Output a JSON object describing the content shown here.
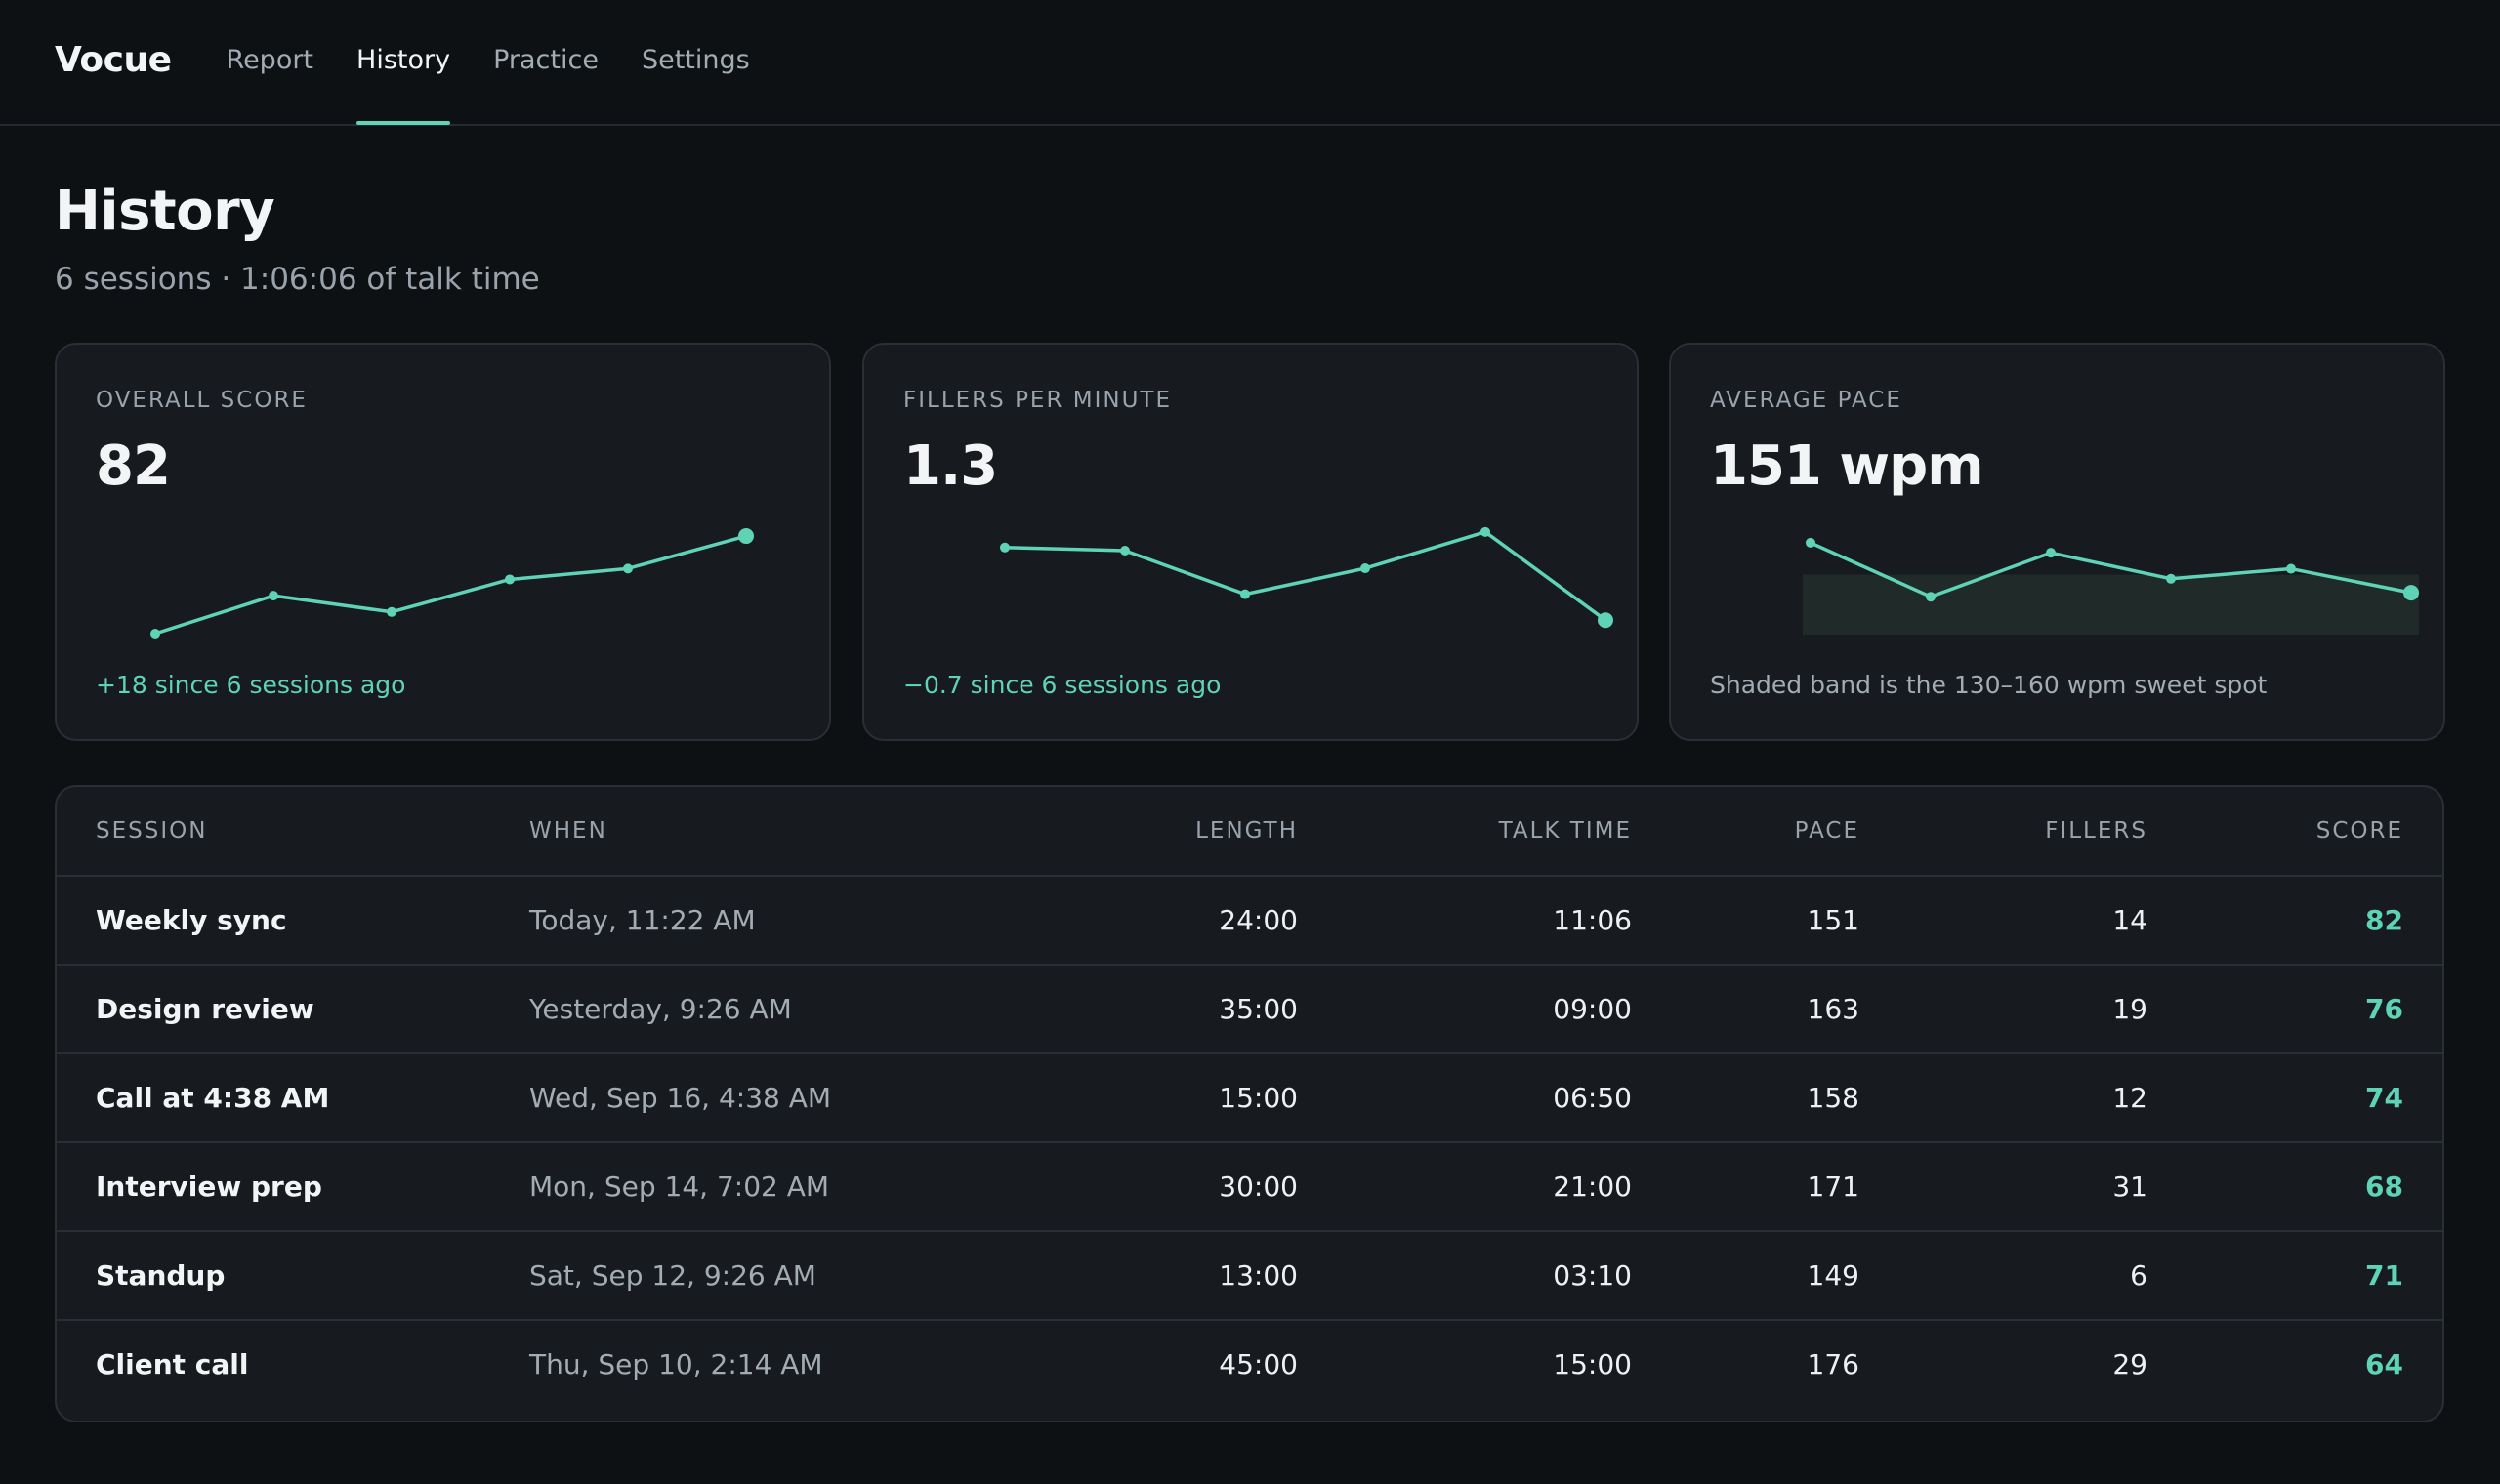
{
  "app": {
    "brand": "Vocue",
    "nav": [
      {
        "label": "Report",
        "active": false
      },
      {
        "label": "History",
        "active": true
      },
      {
        "label": "Practice",
        "active": false
      },
      {
        "label": "Settings",
        "active": false
      }
    ]
  },
  "header": {
    "title": "History",
    "subtitle": "6 sessions · 1:06:06 of talk time"
  },
  "colors": {
    "accent": "#5ed3b6",
    "background": "#0e1114",
    "card": "#171b1f"
  },
  "cards": [
    {
      "label": "Overall score",
      "value": "82",
      "foot": "+18 since 6 sessions ago",
      "trend": [
        64,
        71,
        68,
        74,
        76,
        82
      ]
    },
    {
      "label": "Fillers per minute",
      "value": "1.3",
      "foot": "−0.7 since 6 sessions ago",
      "trend": [
        2.0,
        1.97,
        1.55,
        1.8,
        2.15,
        1.3
      ]
    },
    {
      "label": "Average pace",
      "value": "151 wpm",
      "foot": "Shaded band is the 130–160 wpm sweet spot",
      "trend": [
        176,
        149,
        171,
        158,
        163,
        151
      ],
      "band": [
        130,
        160
      ]
    }
  ],
  "table": {
    "headers": {
      "session": "Session",
      "when": "When",
      "length": "Length",
      "talk_time": "Talk time",
      "pace": "Pace",
      "fillers": "Fillers",
      "score": "Score"
    },
    "rows": [
      {
        "session": "Weekly sync",
        "when": "Today, 11:22 AM",
        "length": "24:00",
        "talk_time": "11:06",
        "pace": "151",
        "fillers": "14",
        "score": "82"
      },
      {
        "session": "Design review",
        "when": "Yesterday, 9:26 AM",
        "length": "35:00",
        "talk_time": "09:00",
        "pace": "163",
        "fillers": "19",
        "score": "76"
      },
      {
        "session": "Call at 4:38 AM",
        "when": "Wed, Sep 16, 4:38 AM",
        "length": "15:00",
        "talk_time": "06:50",
        "pace": "158",
        "fillers": "12",
        "score": "74"
      },
      {
        "session": "Interview prep",
        "when": "Mon, Sep 14, 7:02 AM",
        "length": "30:00",
        "talk_time": "21:00",
        "pace": "171",
        "fillers": "31",
        "score": "68"
      },
      {
        "session": "Standup",
        "when": "Sat, Sep 12, 9:26 AM",
        "length": "13:00",
        "talk_time": "03:10",
        "pace": "149",
        "fillers": "6",
        "score": "71"
      },
      {
        "session": "Client call",
        "when": "Thu, Sep 10, 2:14 AM",
        "length": "45:00",
        "talk_time": "15:00",
        "pace": "176",
        "fillers": "29",
        "score": "64"
      }
    ]
  }
}
